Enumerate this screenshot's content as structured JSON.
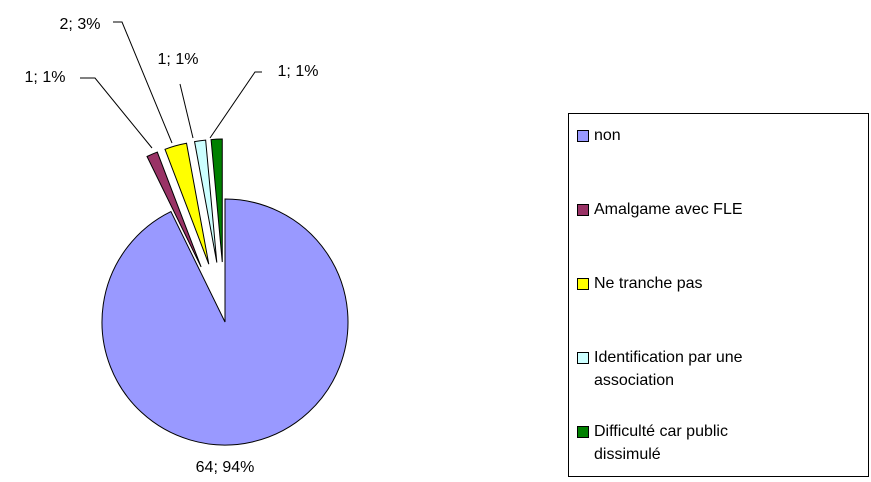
{
  "chart_data": {
    "type": "pie",
    "categories": [
      "non",
      "Amalgame avec FLE",
      "Ne tranche pas",
      "Identification par une association",
      "Difficulté car public dissimulé"
    ],
    "values": [
      64,
      1,
      2,
      1,
      1
    ],
    "value_labels": [
      "64; 94%",
      "1; 1%",
      "2; 3%",
      "1; 1%",
      "1; 1%"
    ],
    "colors": [
      "#9999ff",
      "#993366",
      "#ffff00",
      "#ccffff",
      "#008000"
    ],
    "legend": "right"
  }
}
